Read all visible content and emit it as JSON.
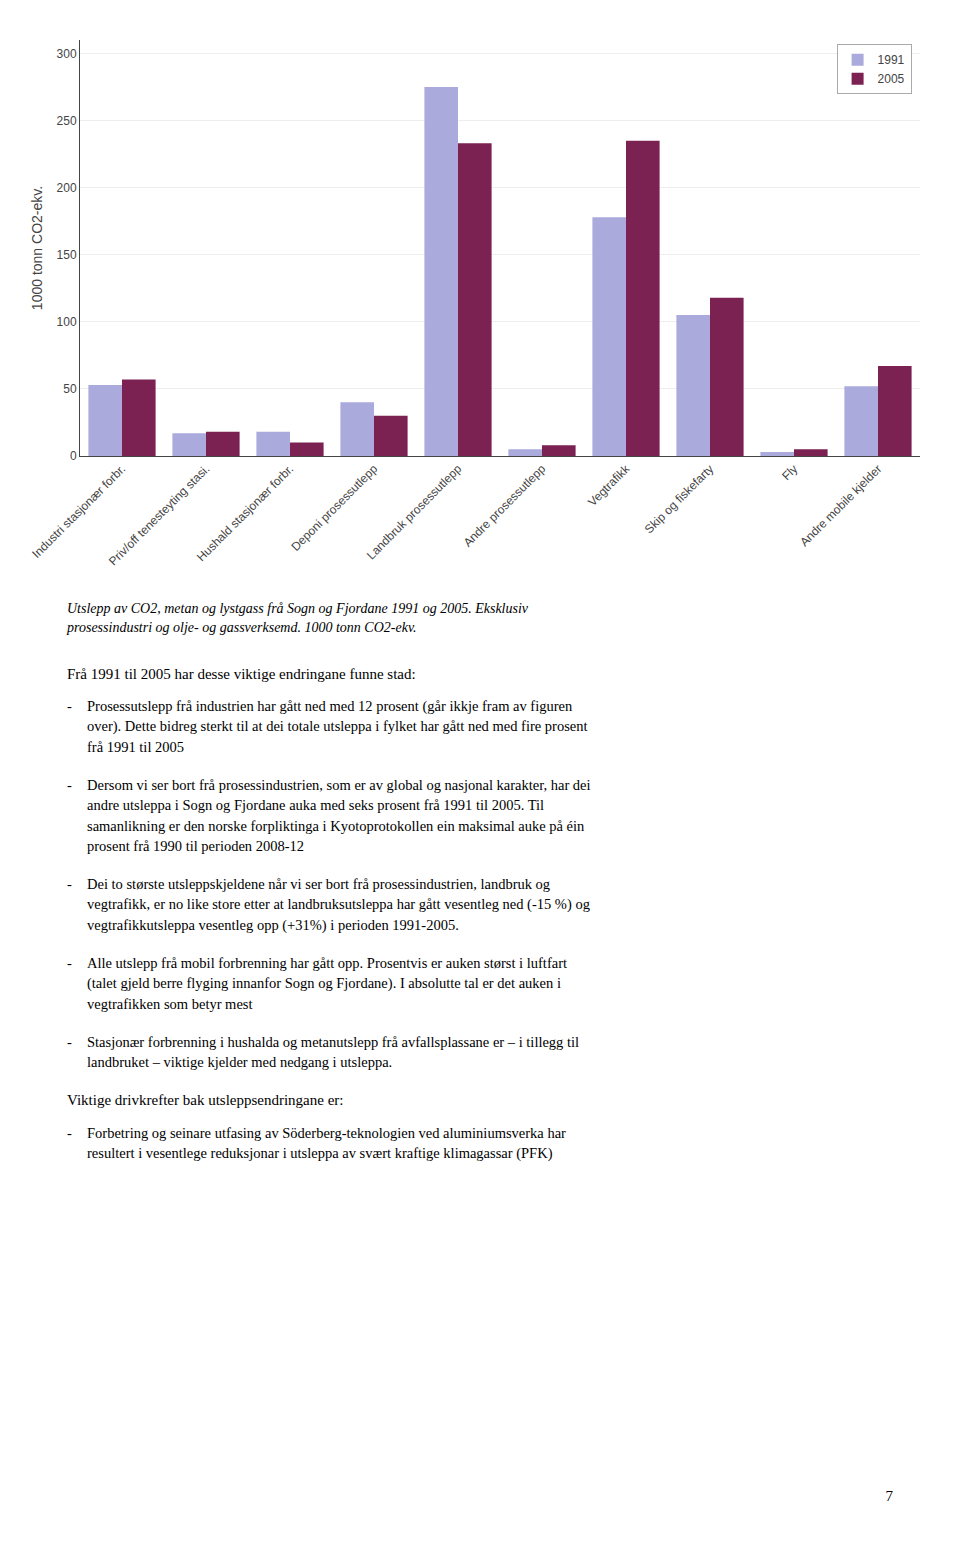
{
  "chart_data": {
    "type": "bar",
    "categories": [
      "Industri stasjonær forbr.",
      "Priv/off tenesteyting stasi.",
      "Hushald stasjonær forbr.",
      "Deponi prosessutlepp",
      "Landbruk prosessutlepp",
      "Andre prosessutlepp",
      "Vegtrafikk",
      "Skip og fiskefarty",
      "Fly",
      "Andre mobile kjelder"
    ],
    "series": [
      {
        "name": "1991",
        "color": "#aaaadd",
        "values": [
          53,
          17,
          18,
          40,
          275,
          5,
          178,
          105,
          3,
          52
        ]
      },
      {
        "name": "2005",
        "color": "#7b2252",
        "values": [
          57,
          18,
          10,
          30,
          233,
          8,
          235,
          118,
          5,
          67
        ]
      }
    ],
    "ylabel": "1000 tonn CO2-ekv.",
    "ylim": [
      0,
      310
    ],
    "yticks": [
      0,
      50,
      100,
      150,
      200,
      250,
      300
    ],
    "grid": true,
    "legend": "upper right"
  },
  "page_text": {
    "caption": "Utslepp av CO2, metan og lystgass frå Sogn og Fjordane 1991 og 2005. Eksklusiv\nprosessindustri og olje- og gassverksemd. 1000 tonn CO2-ekv.",
    "bullet_marker": "-",
    "blocks": [
      {
        "heading": "Frå 1991 til 2005 har desse viktige endringane funne stad:",
        "bullets": [
          "Prosessutslepp frå industrien har gått ned med 12 prosent (går ikkje fram av figuren\nover). Dette bidreg sterkt til at dei totale utsleppa i fylket har gått ned med fire prosent\nfrå 1991 til 2005",
          "Dersom vi ser bort frå prosessindustrien, som er av global og nasjonal karakter, har dei\nandre utsleppa i Sogn og Fjordane auka med seks prosent frå 1991 til 2005. Til\nsamanlikning er den norske forpliktinga i Kyotoprotokollen ein maksimal auke på éin\nprosent frå 1990 til perioden 2008-12",
          "Dei to største utsleppskjeldene når vi ser bort frå prosessindustrien, landbruk og\nvegtrafikk, er no like store etter at landbruksutsleppa har gått vesentleg ned (-15 %) og\nvegtrafikkutsleppa vesentleg opp (+31%) i perioden 1991-2005.",
          "Alle utslepp frå mobil forbrenning har gått opp. Prosentvis er auken størst i luftfart\n(talet gjeld berre flyging innanfor Sogn og Fjordane). I absolutte tal er det auken i\nvegtrafikken som betyr mest",
          "Stasjonær forbrenning i hushalda og metanutslepp frå avfallsplassane er – i tillegg til\nlandbruket – viktige kjelder med nedgang i utsleppa."
        ]
      },
      {
        "heading": "Viktige drivkrefter bak utsleppsendringane er:",
        "bullets": [
          "Forbetring og seinare utfasing av Söderberg-teknologien ved aluminiumsverka har\nresultert i vesentlege reduksjonar i utsleppa av svært kraftige klimagassar (PFK)"
        ]
      }
    ],
    "page_number": "7"
  }
}
